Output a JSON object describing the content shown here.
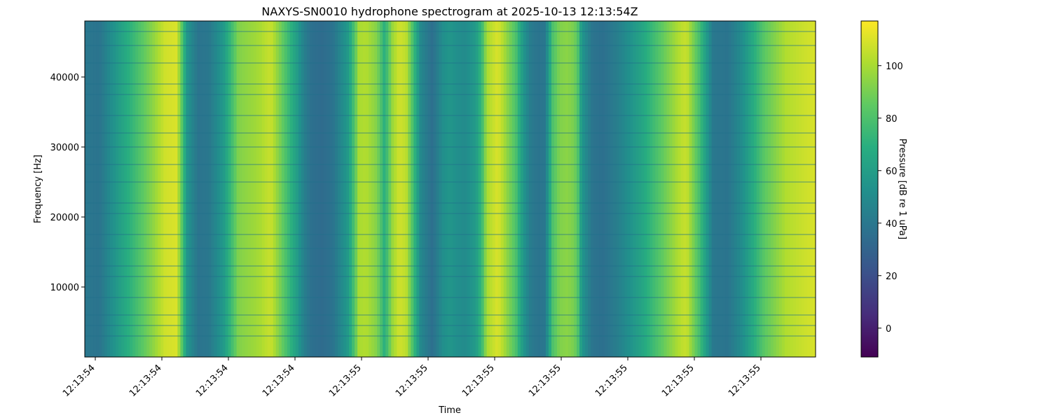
{
  "chart_data": {
    "type": "heatmap",
    "title": "NAXYS-SN0010 hydrophone spectrogram at 2025-10-13 12:13:54Z",
    "xlabel": "Time",
    "ylabel": "Frequency [Hz]",
    "x_tick_labels": [
      "12:13:54",
      "12:13:54",
      "12:13:54",
      "12:13:54",
      "12:13:55",
      "12:13:55",
      "12:13:55",
      "12:13:55",
      "12:13:55",
      "12:13:55",
      "12:13:55"
    ],
    "ylim": [
      0,
      48000
    ],
    "y_ticks": [
      10000,
      20000,
      30000,
      40000
    ],
    "grid": false,
    "colormap": "viridis",
    "colorbar": {
      "label": "Pressure [dB re 1 uPa]",
      "range": [
        -11,
        117
      ],
      "ticks": [
        0,
        20,
        40,
        60,
        80,
        100
      ]
    },
    "time_profile": {
      "x": [
        0,
        0.02,
        0.05,
        0.09,
        0.11,
        0.125,
        0.13,
        0.14,
        0.155,
        0.17,
        0.19,
        0.21,
        0.24,
        0.25,
        0.255,
        0.26,
        0.275,
        0.29,
        0.3,
        0.31,
        0.325,
        0.34,
        0.36,
        0.37,
        0.375,
        0.385,
        0.4,
        0.41,
        0.415,
        0.42,
        0.43,
        0.44,
        0.45,
        0.46,
        0.47,
        0.475,
        0.48,
        0.49,
        0.5,
        0.51,
        0.52,
        0.535,
        0.545,
        0.55,
        0.565,
        0.57,
        0.58,
        0.59,
        0.6,
        0.61,
        0.62,
        0.63,
        0.635,
        0.64,
        0.65,
        0.66,
        0.67,
        0.675,
        0.68,
        0.695,
        0.71,
        0.73,
        0.76,
        0.79,
        0.81,
        0.82,
        0.825,
        0.83,
        0.84,
        0.85,
        0.86,
        0.88,
        0.9,
        0.93,
        0.96,
        0.98,
        1.0
      ],
      "level_db": [
        40,
        38,
        62,
        92,
        108,
        110,
        95,
        55,
        38,
        40,
        58,
        92,
        100,
        105,
        106,
        100,
        80,
        60,
        44,
        36,
        34,
        38,
        58,
        84,
        100,
        102,
        92,
        70,
        80,
        96,
        108,
        104,
        76,
        48,
        40,
        36,
        40,
        52,
        56,
        52,
        50,
        58,
        80,
        100,
        110,
        105,
        92,
        80,
        56,
        42,
        38,
        40,
        60,
        80,
        92,
        94,
        90,
        80,
        56,
        38,
        36,
        44,
        62,
        85,
        100,
        106,
        104,
        95,
        80,
        60,
        40,
        38,
        52,
        84,
        102,
        106,
        110
      ]
    },
    "frequency_striations_hz": [
      3000,
      4500,
      6000,
      8500,
      11500,
      13000,
      15500,
      17500,
      20500,
      22000,
      25000,
      27500,
      30000,
      32000,
      34500,
      37500,
      39000,
      42000,
      44500,
      46500
    ]
  }
}
